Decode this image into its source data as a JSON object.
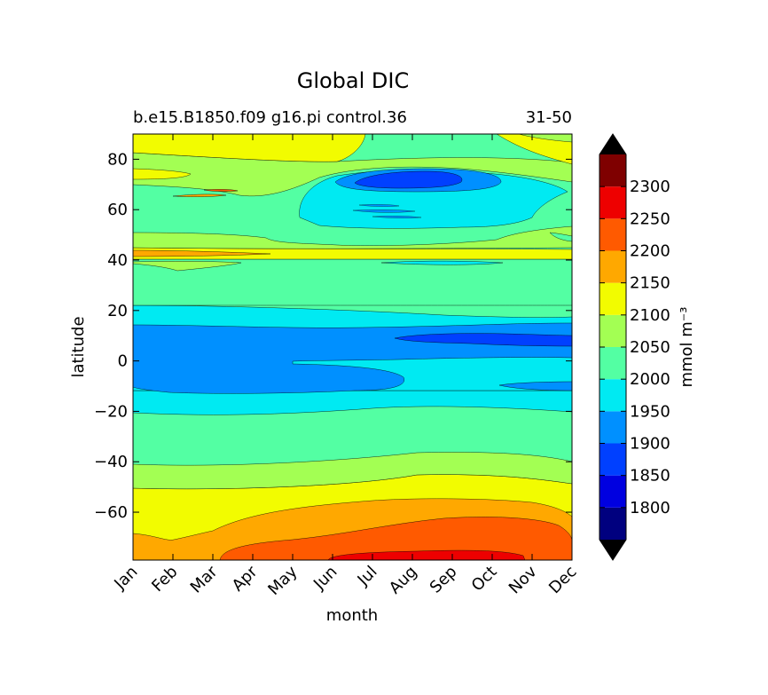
{
  "chart_data": {
    "type": "contour",
    "title": "Global DIC",
    "subtitle_left": "b.e15.B1850.f09 g16.pi control.36",
    "subtitle_right": "31-50",
    "xlabel": "month",
    "ylabel": "latitude",
    "x_ticks": [
      "Jan",
      "Feb",
      "Mar",
      "Apr",
      "May",
      "Jun",
      "Jul",
      "Aug",
      "Sep",
      "Oct",
      "Nov",
      "Dec"
    ],
    "xlim": [
      1,
      12
    ],
    "ylim": [
      -79,
      90
    ],
    "y_ticks": [
      "80",
      "60",
      "40",
      "20",
      "0",
      "−20",
      "−40",
      "−60"
    ],
    "y_tick_values": [
      80,
      60,
      40,
      20,
      0,
      -20,
      -40,
      -60
    ],
    "colorbar": {
      "label": "mmol m⁻³",
      "levels": [
        1750,
        1800,
        1850,
        1900,
        1950,
        2000,
        2050,
        2100,
        2150,
        2200,
        2250,
        2300,
        2350
      ],
      "tick_labels": [
        "1800",
        "1850",
        "1900",
        "1950",
        "2000",
        "2050",
        "2100",
        "2150",
        "2200",
        "2250",
        "2300"
      ],
      "colors": [
        "#00007f",
        "#0000e0",
        "#0040ff",
        "#0090ff",
        "#00eaf2",
        "#53ffa3",
        "#a3ff53",
        "#f2fc00",
        "#ffa800",
        "#ff5a00",
        "#ee0000",
        "#7f0000"
      ],
      "extend": "both",
      "under_color": "#000000",
      "over_color": "#000000"
    },
    "latitude_bands": [
      {
        "lat": [
          80,
          90
        ],
        "value_range": [
          2100,
          2150
        ],
        "note": "high-latitude Arctic, north edge"
      },
      {
        "lat": [
          65,
          80
        ],
        "value_range": [
          2050,
          2100
        ],
        "note": "Arctic, with low-DIC pocket (1850-1900) near Aug at ~72N"
      },
      {
        "lat": [
          44,
          65
        ],
        "value_range": [
          2000,
          2100
        ],
        "note": "subpolar north; 1950-2000 in Jun-Sep"
      },
      {
        "lat": [
          40,
          44
        ],
        "value_range": [
          2100,
          2200
        ],
        "note": "narrow high band near 42N"
      },
      {
        "lat": [
          22,
          40
        ],
        "value_range": [
          2000,
          2050
        ]
      },
      {
        "lat": [
          14,
          22
        ],
        "value_range": [
          1950,
          2000
        ]
      },
      {
        "lat": [
          -10,
          14
        ],
        "value_range": [
          1850,
          1950
        ],
        "note": "equatorial minimum; 1850-1900 in Aug-Dec near 8N"
      },
      {
        "lat": [
          -20,
          -10
        ],
        "value_range": [
          1950,
          2000
        ]
      },
      {
        "lat": [
          -42,
          -20
        ],
        "value_range": [
          2000,
          2050
        ]
      },
      {
        "lat": [
          -51,
          -42
        ],
        "value_range": [
          2050,
          2100
        ]
      },
      {
        "lat": [
          -66,
          -51
        ],
        "value_range": [
          2100,
          2150
        ]
      },
      {
        "lat": [
          -79,
          -66
        ],
        "value_range": [
          2150,
          2300
        ],
        "note": "Southern Ocean maximum, 2250-2300 in Jul-Oct"
      }
    ]
  }
}
